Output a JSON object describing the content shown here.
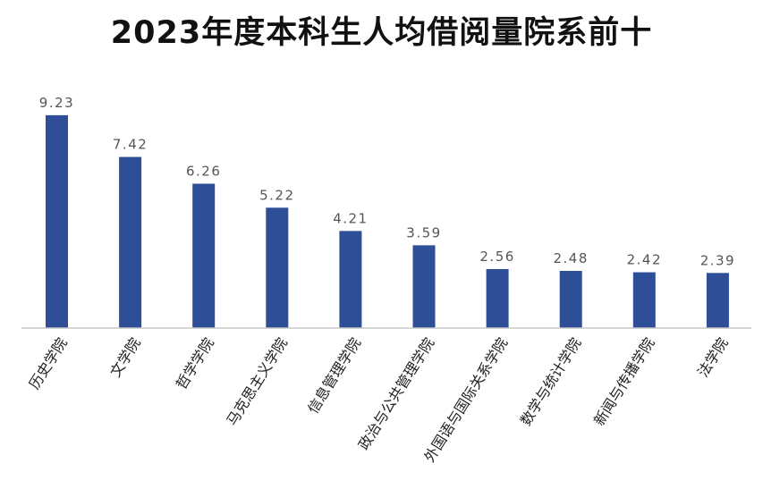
{
  "chart_data": {
    "type": "bar",
    "title": "2023年度本科生人均借阅量院系前十",
    "xlabel": "",
    "ylabel": "",
    "categories": [
      "历史学院",
      "文学院",
      "哲学学院",
      "马克思主义学院",
      "信息管理学院",
      "政治与公共管理学院",
      "外国语与国际关系学院",
      "数学与统计学院",
      "新闻与传播学院",
      "法学院"
    ],
    "values": [
      9.23,
      7.42,
      6.26,
      5.22,
      4.21,
      3.59,
      2.56,
      2.48,
      2.42,
      2.39
    ],
    "value_labels": [
      "9.23",
      "7.42",
      "6.26",
      "5.22",
      "4.21",
      "3.59",
      "2.56",
      "2.48",
      "2.42",
      "2.39"
    ],
    "ylim": [
      0,
      10
    ],
    "grid": false,
    "legend": "none",
    "bar_color": "#2E4F97",
    "axis_color": "#c8c8c8"
  }
}
